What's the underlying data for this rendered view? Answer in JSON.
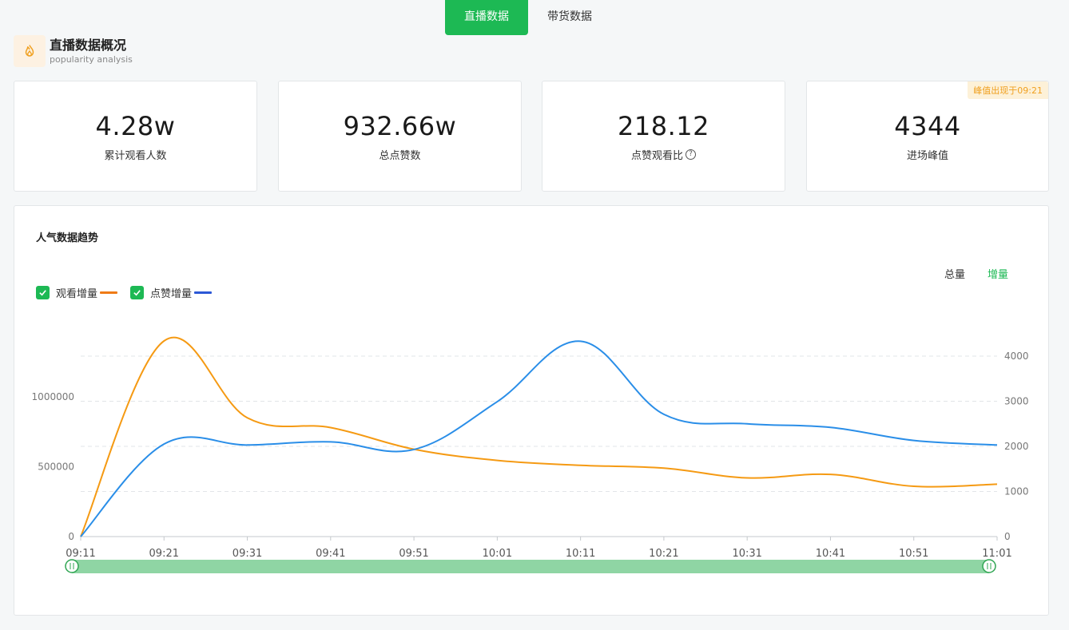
{
  "tabs": [
    {
      "label": "直播数据",
      "active": true
    },
    {
      "label": "带货数据",
      "active": false
    }
  ],
  "section": {
    "title": "直播数据概况",
    "subtitle": "popularity analysis",
    "icon": "flame-icon"
  },
  "stats": [
    {
      "value": "4.28w",
      "label": "累计观看人数"
    },
    {
      "value": "932.66w",
      "label": "总点赞数"
    },
    {
      "value": "218.12",
      "label": "点赞观看比",
      "help": "?"
    },
    {
      "value": "4344",
      "label": "进场峰值",
      "badge": "峰值出现于09:21"
    }
  ],
  "chart_card": {
    "title": "人气数据趋势",
    "modes": [
      {
        "label": "总量",
        "active": false
      },
      {
        "label": "增量",
        "active": true
      }
    ]
  },
  "colors": {
    "accent": "#1db954",
    "views_line": "#f59a13",
    "likes_line": "#2a8ee8",
    "views_legend": "#ef7b16",
    "likes_legend": "#2c58d6",
    "slider_fill": "#8fd5a4"
  },
  "chart_data": {
    "type": "line",
    "x": [
      "09:11",
      "09:21",
      "09:31",
      "09:41",
      "09:51",
      "10:01",
      "10:11",
      "10:21",
      "10:31",
      "10:41",
      "10:51",
      "11:01"
    ],
    "series": [
      {
        "name": "观看增量",
        "axis": "left",
        "values": [
          0,
          1400000,
          850000,
          780000,
          625000,
          545000,
          510000,
          490000,
          420000,
          445000,
          360000,
          375000
        ]
      },
      {
        "name": "点赞增量",
        "axis": "right",
        "values": [
          0,
          2050,
          2030,
          2100,
          1930,
          2990,
          4330,
          2710,
          2500,
          2420,
          2130,
          2030
        ]
      }
    ],
    "y_left": {
      "ticks": [
        0,
        500000,
        1000000
      ],
      "labels": [
        "0",
        "500000",
        "1000000"
      ],
      "range": [
        0,
        1600000
      ]
    },
    "y_right": {
      "ticks": [
        0,
        1000,
        2000,
        3000,
        4000
      ],
      "labels": [
        "0",
        "1000",
        "2000",
        "3000",
        "4000"
      ],
      "range": [
        0,
        4000
      ]
    },
    "grid": true,
    "legend": "top-left",
    "range_slider": {
      "start": 0,
      "end": 1
    }
  }
}
